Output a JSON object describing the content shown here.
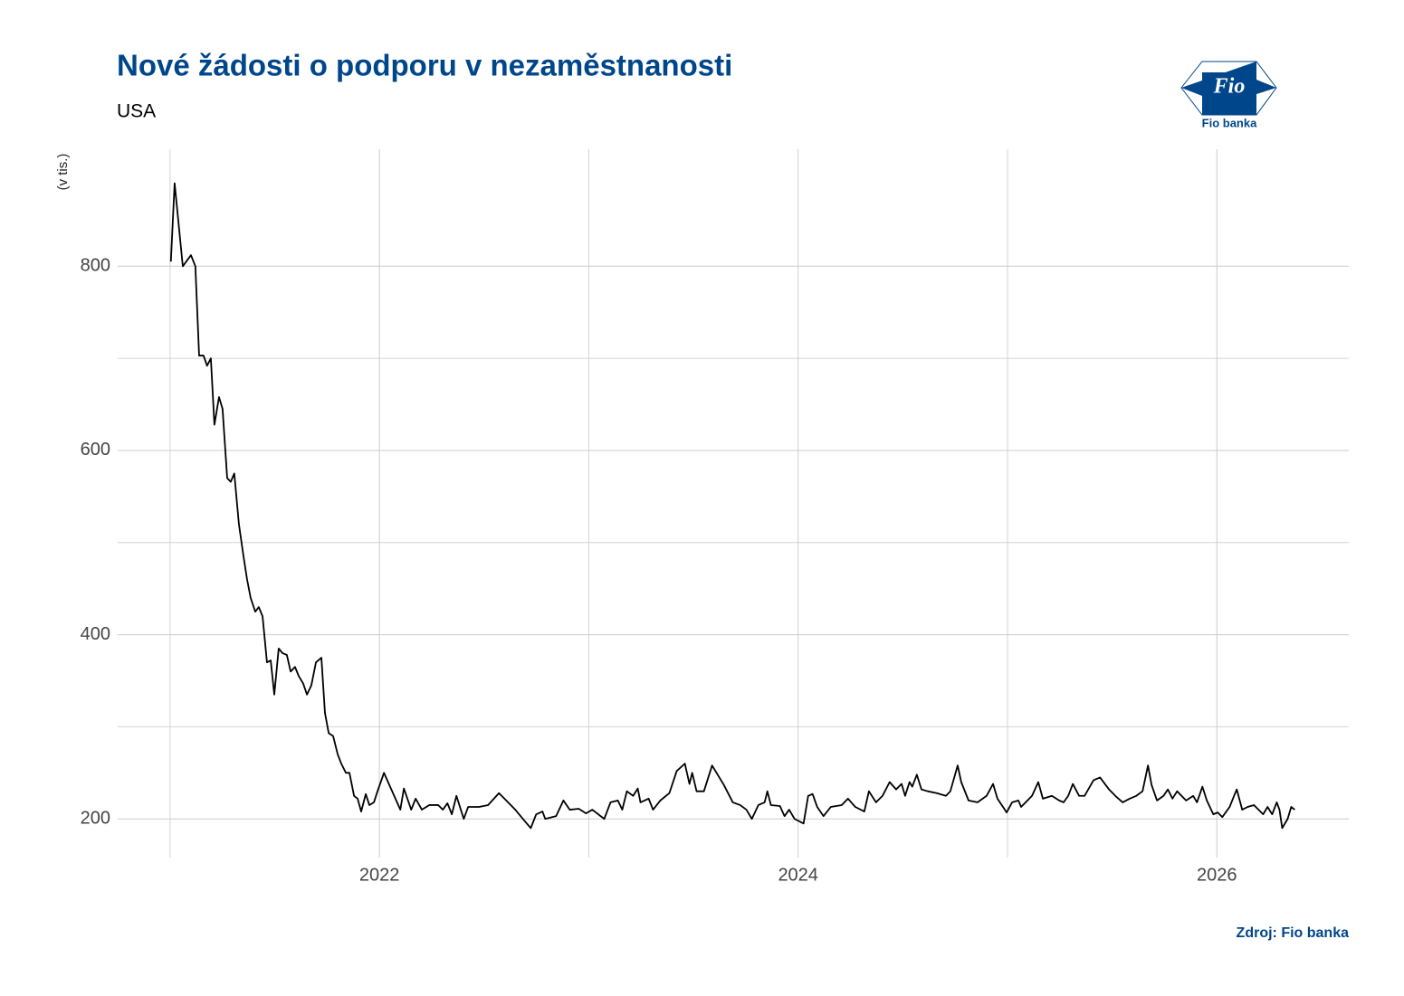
{
  "chart_data": {
    "type": "line",
    "title": "Nové žádosti o podporu v nezaměstnanosti",
    "subtitle": "USA",
    "ylabel": "(v tis.)",
    "source": "Zdroj: Fio banka",
    "title_color": "#00468b",
    "grid": true,
    "xlim": [
      2020.75,
      2026.63
    ],
    "xticks": [
      2022,
      2024,
      2026
    ],
    "x_minor_ticks": [
      2021,
      2023,
      2025
    ],
    "ylim": [
      158,
      927
    ],
    "yticks": [
      200,
      400,
      600,
      800
    ],
    "y_minor_ticks": [
      300,
      500,
      700
    ],
    "series": [
      {
        "color": "#000000",
        "x": [
          2021.004,
          2021.022,
          2021.061,
          2021.1,
          2021.121,
          2021.139,
          2021.16,
          2021.177,
          2021.195,
          2021.212,
          2021.234,
          2021.251,
          2021.273,
          2021.29,
          2021.307,
          2021.329,
          2021.351,
          2021.368,
          2021.385,
          2021.407,
          2021.424,
          2021.442,
          2021.463,
          2021.481,
          2021.498,
          2021.519,
          2021.537,
          2021.558,
          2021.576,
          2021.597,
          2021.615,
          2021.636,
          2021.654,
          2021.675,
          2021.697,
          2021.723,
          2021.74,
          2021.758,
          2021.779,
          2021.801,
          2021.818,
          2021.84,
          2021.857,
          2021.879,
          2021.896,
          2021.913,
          2021.935,
          2021.952,
          2021.974,
          2021.991,
          2022.022,
          2022.1,
          2022.117,
          2022.152,
          2022.173,
          2022.203,
          2022.238,
          2022.281,
          2022.303,
          2022.325,
          2022.346,
          2022.368,
          2022.403,
          2022.424,
          2022.476,
          2022.519,
          2022.571,
          2022.606,
          2022.649,
          2022.693,
          2022.723,
          2022.749,
          2022.779,
          2022.792,
          2022.844,
          2022.879,
          2022.909,
          2022.952,
          2022.987,
          2023.017,
          2023.074,
          2023.104,
          2023.139,
          2023.16,
          2023.182,
          2023.212,
          2023.234,
          2023.247,
          2023.286,
          2023.307,
          2023.342,
          2023.385,
          2023.42,
          2023.459,
          2023.481,
          2023.494,
          2023.515,
          2023.55,
          2023.589,
          2023.645,
          2023.688,
          2023.723,
          2023.753,
          2023.779,
          2023.81,
          2023.84,
          2023.853,
          2023.87,
          2023.913,
          2023.935,
          2023.957,
          2023.983,
          2024.026,
          2024.048,
          2024.069,
          2024.091,
          2024.121,
          2024.156,
          2024.208,
          2024.238,
          2024.273,
          2024.316,
          2024.338,
          2024.372,
          2024.403,
          2024.437,
          2024.468,
          2024.494,
          2024.511,
          2024.532,
          2024.545,
          2024.567,
          2024.589,
          2024.619,
          2024.662,
          2024.706,
          2024.727,
          2024.762,
          2024.779,
          2024.814,
          2024.857,
          2024.9,
          2024.931,
          2024.952,
          2024.996,
          2025.022,
          2025.052,
          2025.065,
          2025.117,
          2025.147,
          2025.169,
          2025.212,
          2025.247,
          2025.268,
          2025.29,
          2025.312,
          2025.342,
          2025.368,
          2025.411,
          2025.442,
          2025.485,
          2025.515,
          2025.55,
          2025.584,
          2025.615,
          2025.645,
          2025.671,
          2025.688,
          2025.714,
          2025.745,
          2025.766,
          2025.788,
          2025.81,
          2025.853,
          2025.887,
          2025.905,
          2025.931,
          2025.952,
          2025.983,
          2026.004,
          2026.026,
          2026.061,
          2026.082,
          2026.095,
          2026.121,
          2026.147,
          2026.177,
          2026.221,
          2026.242,
          2026.264,
          2026.286,
          2026.299,
          2026.312,
          2026.338,
          2026.355,
          2026.372
        ],
        "values": [
          805,
          890,
          800,
          812,
          800,
          703,
          703,
          692,
          700,
          628,
          658,
          645,
          570,
          566,
          575,
          520,
          485,
          460,
          440,
          425,
          430,
          420,
          370,
          372,
          335,
          385,
          380,
          378,
          360,
          365,
          355,
          347,
          335,
          345,
          370,
          375,
          315,
          293,
          290,
          270,
          260,
          250,
          250,
          225,
          222,
          208,
          227,
          215,
          218,
          230,
          250,
          210,
          233,
          210,
          222,
          210,
          215,
          215,
          210,
          217,
          205,
          225,
          200,
          213,
          213,
          215,
          228,
          220,
          210,
          198,
          190,
          205,
          208,
          200,
          203,
          220,
          210,
          211,
          206,
          210,
          200,
          218,
          220,
          210,
          230,
          225,
          233,
          218,
          222,
          210,
          220,
          228,
          252,
          260,
          238,
          250,
          230,
          230,
          258,
          237,
          218,
          215,
          210,
          200,
          215,
          218,
          230,
          215,
          214,
          203,
          210,
          200,
          195,
          225,
          227,
          213,
          203,
          213,
          215,
          222,
          213,
          208,
          230,
          218,
          225,
          240,
          232,
          238,
          225,
          240,
          235,
          248,
          232,
          230,
          228,
          225,
          230,
          258,
          240,
          220,
          218,
          225,
          238,
          222,
          207,
          218,
          220,
          213,
          225,
          240,
          222,
          225,
          220,
          218,
          225,
          238,
          225,
          225,
          242,
          245,
          232,
          225,
          218,
          222,
          225,
          230,
          258,
          237,
          220,
          225,
          232,
          222,
          230,
          220,
          225,
          218,
          235,
          220,
          205,
          207,
          202,
          213,
          225,
          232,
          210,
          213,
          215,
          205,
          213,
          205,
          218,
          210,
          190,
          200,
          213,
          210
        ]
      }
    ]
  },
  "logo": {
    "mark": "Fio",
    "name": "Fio banka"
  }
}
